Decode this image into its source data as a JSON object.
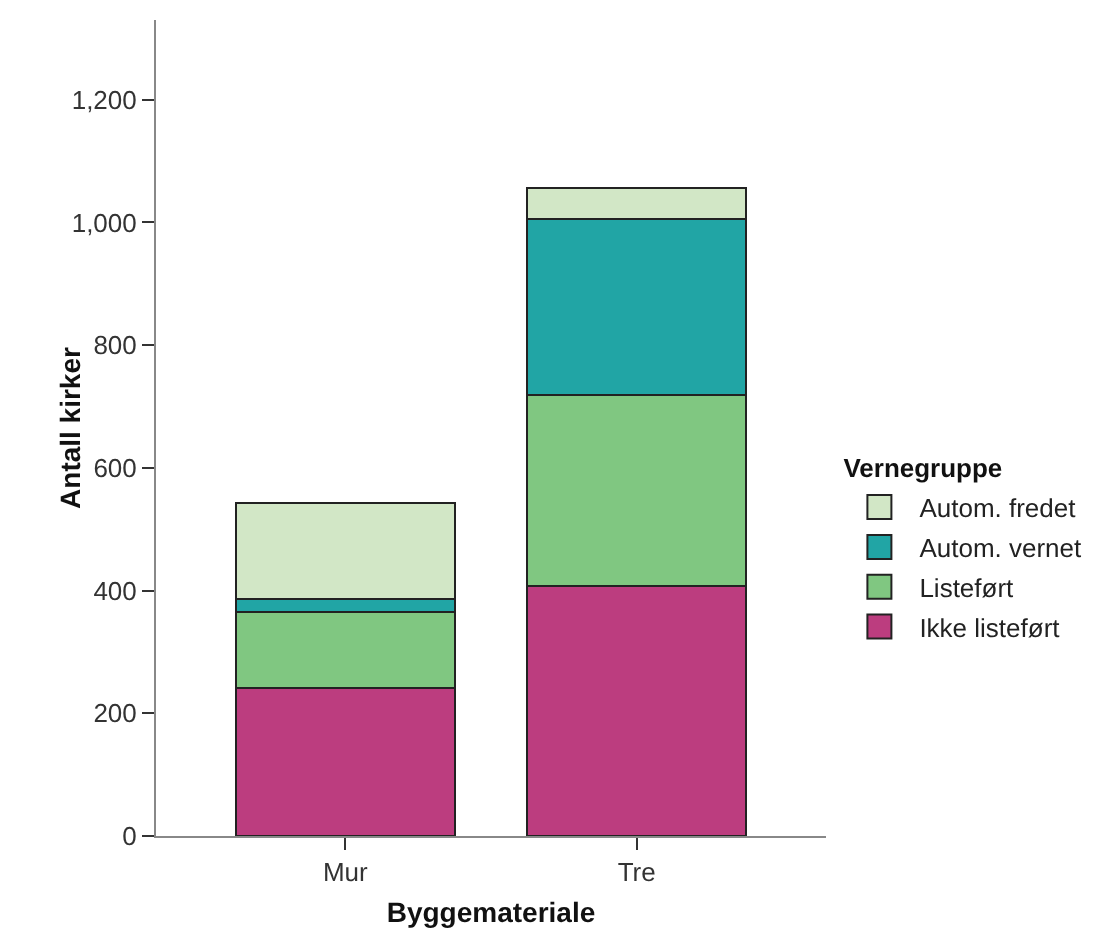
{
  "chart_data": {
    "type": "bar",
    "stacked": true,
    "xlabel": "Byggemateriale",
    "ylabel": "Antall kirker",
    "legend_title": "Vernegruppe",
    "legend": "right",
    "grid": false,
    "categories": [
      "Mur",
      "Tre"
    ],
    "series": [
      {
        "name": "Ikke listeført",
        "color": "#bc3d7f",
        "values": [
          241,
          407
        ]
      },
      {
        "name": "Listeført",
        "color": "#80c781",
        "values": [
          124,
          311
        ]
      },
      {
        "name": "Autom. vernet",
        "color": "#21a5a5",
        "values": [
          22,
          287
        ]
      },
      {
        "name": "Autom. fredet",
        "color": "#d2e7c6",
        "values": [
          156,
          52
        ]
      }
    ],
    "ylim": [
      0,
      1330
    ],
    "yticks": [
      0,
      {
        "value": 200,
        "label": "200"
      },
      {
        "value": 400,
        "label": "400"
      },
      {
        "value": 600,
        "label": "600"
      },
      {
        "value": 800,
        "label": "800"
      },
      {
        "value": 1000,
        "label": "1,000"
      },
      {
        "value": 1200,
        "label": "1,200"
      }
    ]
  }
}
